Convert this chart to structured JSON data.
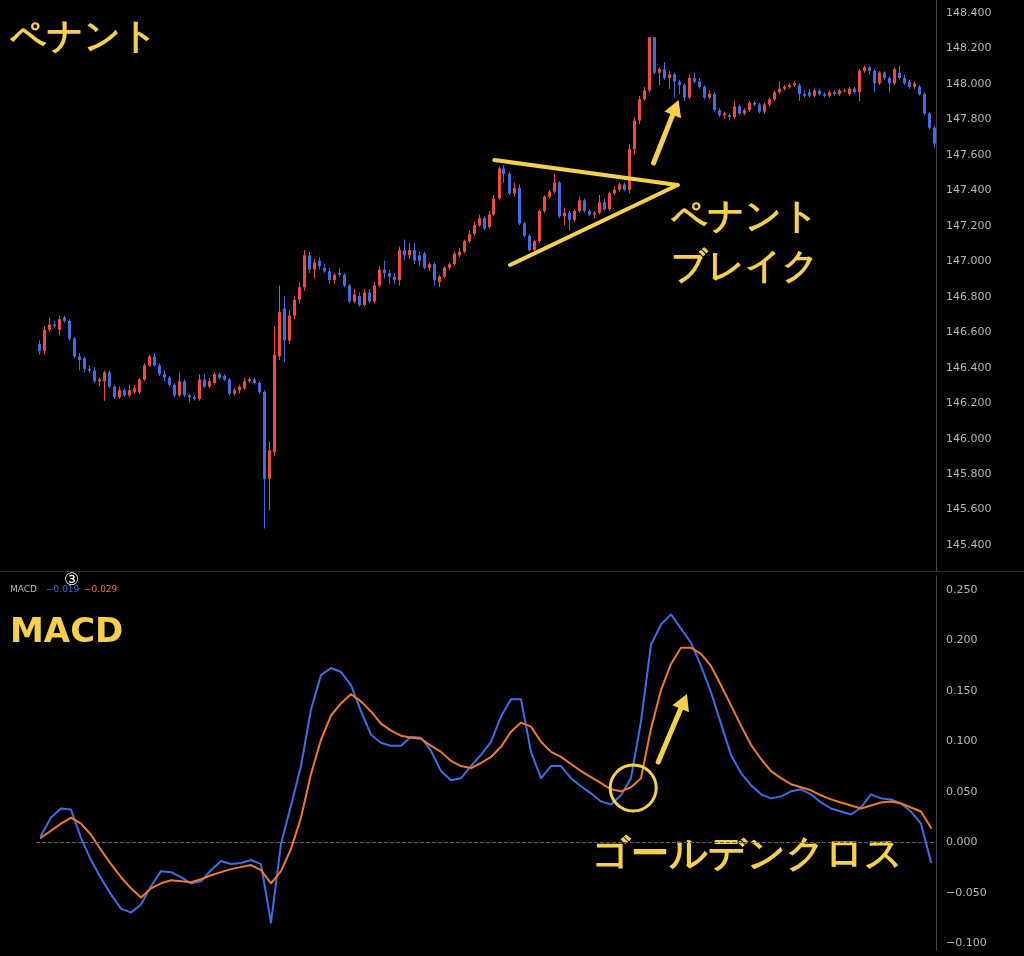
{
  "chart_data": [
    {
      "type": "candlestick",
      "title": "ペナント",
      "categories": [
        null,
        null,
        null,
        null,
        null,
        null,
        null,
        null,
        null,
        null,
        null,
        null,
        null,
        null,
        null,
        null,
        null,
        null,
        null,
        null,
        null,
        null,
        null,
        null,
        null,
        null,
        null,
        null,
        null,
        null,
        null,
        null,
        null,
        null,
        null,
        null,
        null,
        null,
        null,
        null,
        null,
        null,
        null,
        null,
        null,
        null,
        null,
        null,
        null,
        null,
        null,
        null,
        null,
        null,
        null,
        null,
        null,
        null,
        null,
        null,
        null,
        null,
        null,
        null,
        null,
        null,
        null,
        null,
        null,
        null,
        null,
        null,
        null,
        null,
        null,
        null,
        null,
        null,
        null,
        null,
        null,
        null,
        null,
        null,
        null,
        null,
        null,
        null,
        null,
        null,
        null,
        null,
        null,
        null,
        null,
        null,
        null,
        null,
        null,
        null,
        null,
        null,
        null,
        null,
        null,
        null,
        null,
        null,
        null,
        null,
        null,
        null,
        null,
        null,
        null,
        null,
        null,
        null,
        null,
        null,
        null,
        null,
        null,
        null,
        null,
        null,
        null,
        null,
        null,
        null,
        null,
        null,
        null,
        null,
        null,
        null,
        null,
        null,
        null,
        null,
        null,
        null,
        null,
        null,
        null,
        null,
        null,
        null,
        null,
        null,
        null,
        null,
        null,
        null,
        null,
        null,
        null,
        null,
        null,
        null,
        null,
        null,
        null,
        null,
        null,
        null,
        null,
        null,
        null,
        null,
        null,
        null,
        null,
        null,
        null,
        null,
        null,
        null,
        null,
        null
      ],
      "ohlc": [
        [
          146.53,
          146.55,
          146.47,
          146.49
        ],
        [
          146.49,
          146.63,
          146.47,
          146.61
        ],
        [
          146.61,
          146.68,
          146.6,
          146.64
        ],
        [
          146.64,
          146.66,
          146.62,
          146.63
        ],
        [
          146.61,
          146.69,
          146.58,
          146.67
        ],
        [
          146.68,
          146.69,
          146.65,
          146.66
        ],
        [
          146.66,
          146.67,
          146.55,
          146.56
        ],
        [
          146.56,
          146.57,
          146.45,
          146.46
        ],
        [
          146.46,
          146.48,
          146.38,
          146.44
        ],
        [
          146.45,
          146.46,
          146.37,
          146.39
        ],
        [
          146.39,
          146.41,
          146.37,
          146.38
        ],
        [
          146.38,
          146.4,
          146.31,
          146.32
        ],
        [
          146.32,
          146.34,
          146.29,
          146.33
        ],
        [
          146.32,
          146.38,
          146.21,
          146.37
        ],
        [
          146.37,
          146.38,
          146.28,
          146.29
        ],
        [
          146.29,
          146.3,
          146.22,
          146.23
        ],
        [
          146.23,
          146.29,
          146.22,
          146.27
        ],
        [
          146.27,
          146.28,
          146.23,
          146.24
        ],
        [
          146.24,
          146.3,
          146.23,
          146.27
        ],
        [
          146.26,
          146.3,
          146.25,
          146.28
        ],
        [
          146.26,
          146.34,
          146.25,
          146.33
        ],
        [
          146.33,
          146.42,
          146.32,
          146.41
        ],
        [
          146.41,
          146.47,
          146.4,
          146.46
        ],
        [
          146.46,
          146.48,
          146.4,
          146.41
        ],
        [
          146.41,
          146.42,
          146.35,
          146.36
        ],
        [
          146.36,
          146.38,
          146.32,
          146.34
        ],
        [
          146.34,
          146.35,
          146.29,
          146.3
        ],
        [
          146.3,
          146.31,
          146.23,
          146.24
        ],
        [
          146.24,
          146.37,
          146.23,
          146.32
        ],
        [
          146.32,
          146.33,
          146.23,
          146.24
        ],
        [
          146.24,
          146.25,
          146.2,
          146.23
        ],
        [
          146.23,
          146.24,
          146.21,
          146.22
        ],
        [
          146.22,
          146.36,
          146.21,
          146.33
        ],
        [
          146.33,
          146.36,
          146.28,
          146.29
        ],
        [
          146.29,
          146.34,
          146.28,
          146.32
        ],
        [
          146.31,
          146.37,
          146.3,
          146.36
        ],
        [
          146.36,
          146.37,
          146.33,
          146.34
        ],
        [
          146.35,
          146.36,
          146.32,
          146.33
        ],
        [
          146.33,
          146.34,
          146.24,
          146.25
        ],
        [
          146.25,
          146.28,
          146.24,
          146.27
        ],
        [
          146.27,
          146.3,
          146.25,
          146.29
        ],
        [
          146.28,
          146.34,
          146.27,
          146.32
        ],
        [
          146.32,
          146.34,
          146.31,
          146.33
        ],
        [
          146.33,
          146.34,
          146.3,
          146.31
        ],
        [
          146.31,
          146.32,
          146.25,
          146.26
        ],
        [
          146.26,
          146.27,
          145.49,
          145.77
        ],
        [
          145.77,
          145.98,
          145.59,
          145.93
        ],
        [
          145.92,
          146.63,
          145.9,
          146.47
        ],
        [
          146.46,
          146.86,
          146.44,
          146.71
        ],
        [
          146.73,
          146.8,
          146.43,
          146.55
        ],
        [
          146.55,
          146.72,
          146.53,
          146.69
        ],
        [
          146.69,
          146.8,
          146.67,
          146.78
        ],
        [
          146.78,
          146.88,
          146.76,
          146.85
        ],
        [
          146.85,
          147.06,
          146.83,
          147.03
        ],
        [
          147.03,
          147.05,
          146.93,
          146.95
        ],
        [
          146.95,
          147.01,
          146.9,
          146.99
        ],
        [
          147.0,
          147.02,
          146.95,
          146.97
        ],
        [
          146.96,
          146.98,
          146.93,
          146.94
        ],
        [
          146.94,
          146.96,
          146.87,
          146.89
        ],
        [
          146.89,
          146.93,
          146.87,
          146.92
        ],
        [
          146.93,
          146.96,
          146.91,
          146.92
        ],
        [
          146.92,
          146.93,
          146.85,
          146.86
        ],
        [
          146.86,
          146.87,
          146.76,
          146.77
        ],
        [
          146.77,
          146.84,
          146.76,
          146.81
        ],
        [
          146.8,
          146.82,
          146.74,
          146.75
        ],
        [
          146.75,
          146.84,
          146.74,
          146.82
        ],
        [
          146.82,
          146.84,
          146.76,
          146.77
        ],
        [
          146.77,
          146.88,
          146.76,
          146.86
        ],
        [
          146.86,
          146.97,
          146.85,
          146.95
        ],
        [
          146.95,
          147.0,
          146.9,
          146.93
        ],
        [
          146.93,
          146.95,
          146.87,
          146.91
        ],
        [
          146.91,
          146.93,
          146.87,
          146.89
        ],
        [
          146.89,
          147.08,
          146.86,
          147.06
        ],
        [
          147.06,
          147.12,
          147.0,
          147.03
        ],
        [
          147.03,
          147.1,
          147.01,
          147.06
        ],
        [
          147.06,
          147.1,
          146.98,
          147.0
        ],
        [
          147.03,
          147.05,
          146.97,
          147.0
        ],
        [
          147.04,
          147.05,
          146.95,
          146.96
        ],
        [
          146.96,
          146.99,
          146.94,
          146.98
        ],
        [
          146.98,
          146.99,
          146.86,
          146.89
        ],
        [
          146.88,
          146.92,
          146.85,
          146.91
        ],
        [
          146.91,
          146.97,
          146.9,
          146.96
        ],
        [
          146.96,
          146.99,
          146.95,
          146.98
        ],
        [
          146.98,
          147.05,
          146.97,
          147.04
        ],
        [
          147.03,
          147.07,
          147.02,
          147.05
        ],
        [
          147.05,
          147.12,
          147.04,
          147.11
        ],
        [
          147.11,
          147.17,
          147.1,
          147.15
        ],
        [
          147.15,
          147.22,
          147.14,
          147.2
        ],
        [
          147.2,
          147.26,
          147.19,
          147.24
        ],
        [
          147.24,
          147.25,
          147.17,
          147.18
        ],
        [
          147.19,
          147.28,
          147.18,
          147.26
        ],
        [
          147.26,
          147.37,
          147.25,
          147.35
        ],
        [
          147.35,
          147.53,
          147.34,
          147.52
        ],
        [
          147.52,
          147.54,
          147.44,
          147.49
        ],
        [
          147.49,
          147.5,
          147.37,
          147.38
        ],
        [
          147.38,
          147.44,
          147.36,
          147.41
        ],
        [
          147.41,
          147.43,
          147.2,
          147.21
        ],
        [
          147.21,
          147.22,
          147.13,
          147.14
        ],
        [
          147.14,
          147.15,
          147.05,
          147.06
        ],
        [
          147.06,
          147.12,
          147.05,
          147.11
        ],
        [
          147.11,
          147.29,
          147.1,
          147.28
        ],
        [
          147.28,
          147.37,
          147.27,
          147.36
        ],
        [
          147.36,
          147.4,
          147.35,
          147.39
        ],
        [
          147.39,
          147.49,
          147.38,
          147.44
        ],
        [
          147.44,
          147.45,
          147.24,
          147.25
        ],
        [
          147.25,
          147.3,
          147.2,
          147.27
        ],
        [
          147.27,
          147.28,
          147.17,
          147.23
        ],
        [
          147.23,
          147.29,
          147.22,
          147.28
        ],
        [
          147.28,
          147.36,
          147.27,
          147.34
        ],
        [
          147.34,
          147.35,
          147.27,
          147.28
        ],
        [
          147.28,
          147.29,
          147.25,
          147.26
        ],
        [
          147.26,
          147.28,
          147.24,
          147.27
        ],
        [
          147.27,
          147.37,
          147.26,
          147.33
        ],
        [
          147.33,
          147.35,
          147.28,
          147.29
        ],
        [
          147.29,
          147.39,
          147.28,
          147.38
        ],
        [
          147.38,
          147.42,
          147.37,
          147.4
        ],
        [
          147.4,
          147.44,
          147.39,
          147.43
        ],
        [
          147.43,
          147.44,
          147.39,
          147.4
        ],
        [
          147.4,
          147.66,
          147.38,
          147.63
        ],
        [
          147.63,
          147.81,
          147.6,
          147.79
        ],
        [
          147.79,
          147.93,
          147.77,
          147.91
        ],
        [
          147.91,
          147.98,
          147.9,
          147.96
        ],
        [
          147.96,
          148.26,
          147.95,
          148.26
        ],
        [
          148.26,
          148.26,
          148.05,
          148.06
        ],
        [
          148.06,
          148.09,
          147.99,
          148.08
        ],
        [
          148.08,
          148.12,
          148.02,
          148.03
        ],
        [
          148.03,
          148.07,
          147.97,
          148.05
        ],
        [
          148.05,
          148.06,
          147.92,
          148.01
        ],
        [
          148.01,
          148.02,
          147.94,
          147.99
        ],
        [
          147.99,
          148.0,
          147.9,
          147.92
        ],
        [
          147.92,
          148.05,
          147.91,
          148.03
        ],
        [
          148.03,
          148.06,
          148.0,
          148.01
        ],
        [
          148.01,
          148.03,
          147.97,
          147.98
        ],
        [
          147.98,
          147.99,
          147.91,
          147.92
        ],
        [
          147.92,
          147.96,
          147.91,
          147.94
        ],
        [
          147.94,
          147.95,
          147.84,
          147.85
        ],
        [
          147.85,
          147.86,
          147.81,
          147.82
        ],
        [
          147.82,
          147.84,
          147.8,
          147.83
        ],
        [
          147.82,
          147.83,
          147.79,
          147.81
        ],
        [
          147.81,
          147.9,
          147.8,
          147.87
        ],
        [
          147.87,
          147.88,
          147.82,
          147.83
        ],
        [
          147.83,
          147.86,
          147.82,
          147.85
        ],
        [
          147.85,
          147.9,
          147.84,
          147.89
        ],
        [
          147.89,
          147.9,
          147.87,
          147.88
        ],
        [
          147.88,
          147.89,
          147.83,
          147.84
        ],
        [
          147.84,
          147.89,
          147.83,
          147.88
        ],
        [
          147.88,
          147.92,
          147.87,
          147.91
        ],
        [
          147.91,
          147.96,
          147.9,
          147.95
        ],
        [
          147.95,
          148.01,
          147.94,
          147.97
        ],
        [
          147.97,
          147.99,
          147.96,
          147.98
        ],
        [
          147.98,
          148.0,
          147.97,
          147.99
        ],
        [
          147.99,
          148.01,
          147.98,
          148.0
        ],
        [
          147.99,
          148.0,
          147.9,
          147.94
        ],
        [
          147.94,
          147.96,
          147.92,
          147.93
        ],
        [
          147.95,
          147.97,
          147.92,
          147.93
        ],
        [
          147.93,
          147.97,
          147.92,
          147.96
        ],
        [
          147.96,
          147.97,
          147.93,
          147.94
        ],
        [
          147.94,
          147.95,
          147.92,
          147.93
        ],
        [
          147.93,
          147.96,
          147.92,
          147.95
        ],
        [
          147.95,
          147.96,
          147.93,
          147.94
        ],
        [
          147.94,
          147.97,
          147.93,
          147.96
        ],
        [
          147.96,
          147.97,
          147.95,
          147.96
        ],
        [
          147.94,
          147.98,
          147.93,
          147.97
        ],
        [
          147.97,
          147.98,
          147.94,
          147.95
        ],
        [
          147.95,
          148.08,
          147.9,
          148.07
        ],
        [
          148.07,
          148.1,
          148.06,
          148.09
        ],
        [
          148.09,
          148.1,
          148.05,
          148.07
        ],
        [
          148.07,
          148.08,
          147.95,
          148.0
        ],
        [
          148.0,
          148.07,
          147.99,
          148.06
        ],
        [
          148.06,
          148.07,
          148.02,
          148.03
        ],
        [
          148.03,
          148.04,
          147.95,
          148.0
        ],
        [
          148.0,
          148.09,
          147.99,
          148.08
        ],
        [
          148.06,
          148.1,
          148.02,
          148.03
        ],
        [
          148.03,
          148.05,
          147.99,
          148.0
        ],
        [
          148.01,
          148.02,
          147.97,
          147.98
        ],
        [
          147.98,
          148.01,
          147.97,
          148.0
        ],
        [
          147.98,
          147.99,
          147.93,
          147.94
        ],
        [
          147.94,
          147.95,
          147.82,
          147.83
        ],
        [
          147.83,
          147.84,
          147.74,
          147.75
        ],
        [
          147.75,
          147.76,
          147.64,
          147.66
        ]
      ],
      "ylim": [
        145.25,
        148.47
      ],
      "yticks": [
        {
          "value": 145.4,
          "label": "145.400"
        },
        {
          "value": 145.6,
          "label": "145.600"
        },
        {
          "value": 145.8,
          "label": "145.800"
        },
        {
          "value": 146,
          "label": "146.000"
        },
        {
          "value": 146.2,
          "label": "146.200"
        },
        {
          "value": 146.4,
          "label": "146.400"
        },
        {
          "value": 146.6,
          "label": "146.600"
        },
        {
          "value": 146.8,
          "label": "146.800"
        },
        {
          "value": 147,
          "label": "147.000"
        },
        {
          "value": 147.2,
          "label": "147.200"
        },
        {
          "value": 147.4,
          "label": "147.400"
        },
        {
          "value": 147.6,
          "label": "147.600"
        },
        {
          "value": 147.8,
          "label": "147.800"
        },
        {
          "value": 148,
          "label": "148.000"
        },
        {
          "value": 148.2,
          "label": "148.200"
        },
        {
          "value": 148.4,
          "label": "148.400"
        }
      ],
      "grid": false,
      "tick_labels": "y",
      "annotations": [
        "ペナントブレイク"
      ]
    },
    {
      "type": "line",
      "title": "MACD",
      "categories": [
        null,
        null,
        null,
        null,
        null,
        null,
        null,
        null,
        null,
        null,
        null,
        null,
        null,
        null,
        null,
        null,
        null,
        null,
        null,
        null,
        null,
        null,
        null,
        null,
        null,
        null,
        null,
        null,
        null,
        null,
        null,
        null,
        null,
        null,
        null,
        null,
        null,
        null,
        null,
        null,
        null,
        null,
        null,
        null,
        null,
        null,
        null,
        null,
        null,
        null,
        null,
        null,
        null,
        null,
        null,
        null,
        null,
        null,
        null,
        null,
        null,
        null,
        null,
        null,
        null,
        null,
        null,
        null,
        null,
        null,
        null,
        null,
        null,
        null,
        null,
        null,
        null,
        null,
        null,
        null,
        null,
        null,
        null,
        null,
        null,
        null,
        null,
        null,
        null,
        null
      ],
      "series": [
        {
          "color": "#3d6ee8",
          "values": [
            0.006,
            0.024,
            0.033,
            0.032,
            0.004,
            -0.018,
            -0.036,
            -0.052,
            -0.066,
            -0.07,
            -0.062,
            -0.044,
            -0.029,
            -0.03,
            -0.035,
            -0.041,
            -0.039,
            -0.028,
            -0.019,
            -0.022,
            -0.021,
            -0.018,
            -0.022,
            -0.08,
            -0.002,
            0.036,
            0.075,
            0.131,
            0.165,
            0.172,
            0.168,
            0.155,
            0.129,
            0.106,
            0.098,
            0.095,
            0.095,
            0.104,
            0.103,
            0.09,
            0.07,
            0.061,
            0.063,
            0.075,
            0.086,
            0.099,
            0.124,
            0.141,
            0.141,
            0.089,
            0.063,
            0.075,
            0.075,
            0.063,
            0.055,
            0.048,
            0.04,
            0.037,
            0.046,
            0.063,
            0.119,
            0.195,
            0.215,
            0.225,
            0.211,
            0.197,
            0.174,
            0.148,
            0.117,
            0.086,
            0.068,
            0.056,
            0.047,
            0.043,
            0.045,
            0.05,
            0.052,
            0.047,
            0.039,
            0.033,
            0.03,
            0.027,
            0.034,
            0.047,
            0.043,
            0.042,
            0.038,
            0.03,
            0.018,
            -0.02
          ]
        },
        {
          "color": "#f07b22",
          "values": [
            0.004,
            0.011,
            0.018,
            0.024,
            0.018,
            0.007,
            -0.008,
            -0.022,
            -0.035,
            -0.046,
            -0.055,
            -0.046,
            -0.041,
            -0.038,
            -0.039,
            -0.04,
            -0.037,
            -0.033,
            -0.03,
            -0.027,
            -0.025,
            -0.023,
            -0.028,
            -0.041,
            -0.029,
            -0.007,
            0.024,
            0.067,
            0.101,
            0.125,
            0.137,
            0.146,
            0.139,
            0.129,
            0.117,
            0.11,
            0.105,
            0.103,
            0.102,
            0.095,
            0.089,
            0.08,
            0.075,
            0.073,
            0.078,
            0.084,
            0.094,
            0.109,
            0.118,
            0.114,
            0.099,
            0.089,
            0.084,
            0.077,
            0.07,
            0.064,
            0.058,
            0.052,
            0.05,
            0.054,
            0.063,
            0.112,
            0.15,
            0.176,
            0.192,
            0.192,
            0.186,
            0.174,
            0.155,
            0.135,
            0.115,
            0.096,
            0.082,
            0.07,
            0.063,
            0.057,
            0.054,
            0.051,
            0.046,
            0.042,
            0.039,
            0.036,
            0.033,
            0.036,
            0.039,
            0.04,
            0.038,
            0.034,
            0.03,
            0.014
          ]
        }
      ],
      "ylim": [
        -0.107,
        0.263
      ],
      "yticks": [
        {
          "value": -0.1,
          "label": "−0.100"
        },
        {
          "value": -0.05,
          "label": "−0.050"
        },
        {
          "value": 0,
          "label": "0.000"
        },
        {
          "value": 0.05,
          "label": "0.050"
        },
        {
          "value": 0.1,
          "label": "0.100"
        },
        {
          "value": 0.15,
          "label": "0.150"
        },
        {
          "value": 0.2,
          "label": "0.200"
        },
        {
          "value": 0.25,
          "label": "0.250"
        }
      ],
      "ref_lines": [
        {
          "axis": "y",
          "value": 0,
          "color": "#5d606b",
          "line_style": "dashed"
        }
      ],
      "grid": false,
      "tick_labels": "y",
      "annotations": [
        "③",
        "MACD",
        "−0.019",
        "−0.029",
        "ゴールデンクロス"
      ]
    }
  ]
}
